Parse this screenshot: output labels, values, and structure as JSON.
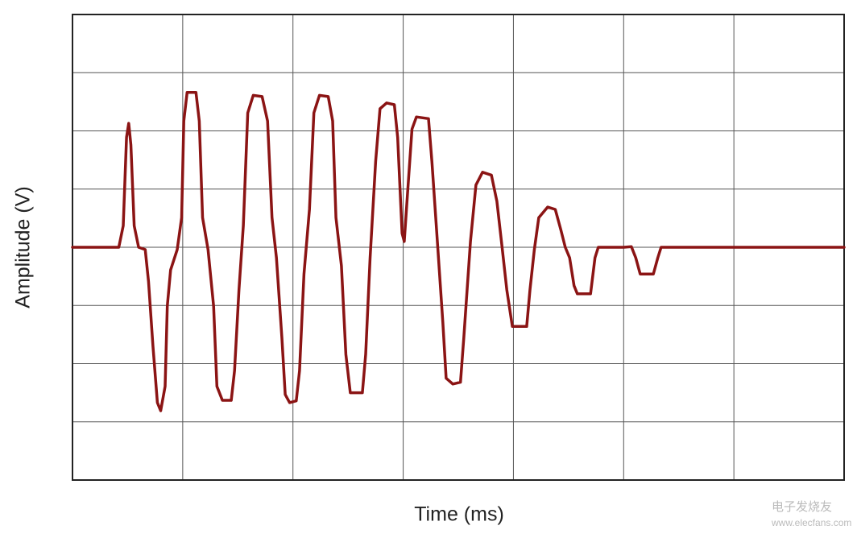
{
  "chart_data": {
    "type": "line",
    "x_label": "Time (ms)",
    "y_label": "Amplitude (V)",
    "annotations": [
      "电子发烧友",
      "www.elecfans.com"
    ],
    "color": "#8b1414",
    "grid": true,
    "xlim": [
      0,
      7
    ],
    "ylim": [
      -4,
      4
    ],
    "x": [
      0,
      0.42,
      0.46,
      0.49,
      0.51,
      0.53,
      0.56,
      0.6,
      0.66,
      0.69,
      0.73,
      0.77,
      0.8,
      0.84,
      0.86,
      0.89,
      0.95,
      0.99,
      1.01,
      1.04,
      1.12,
      1.15,
      1.18,
      1.23,
      1.28,
      1.31,
      1.36,
      1.44,
      1.47,
      1.51,
      1.55,
      1.59,
      1.64,
      1.72,
      1.77,
      1.81,
      1.85,
      1.9,
      1.93,
      1.97,
      2.03,
      2.06,
      2.1,
      2.15,
      2.19,
      2.24,
      2.32,
      2.36,
      2.39,
      2.44,
      2.48,
      2.52,
      2.63,
      2.66,
      2.7,
      2.75,
      2.79,
      2.85,
      2.92,
      2.95,
      2.99,
      3.01,
      3.04,
      3.08,
      3.12,
      3.23,
      3.26,
      3.31,
      3.36,
      3.39,
      3.45,
      3.52,
      3.55,
      3.61,
      3.66,
      3.72,
      3.8,
      3.85,
      3.9,
      3.94,
      3.99,
      4.12,
      4.15,
      4.19,
      4.23,
      4.31,
      4.38,
      4.43,
      4.47,
      4.51,
      4.55,
      4.58,
      4.7,
      4.74,
      4.77,
      5.0,
      5.07,
      5.11,
      5.15,
      5.27,
      5.31,
      5.34,
      5.91,
      7
    ],
    "values": [
      0,
      0,
      0.37,
      1.89,
      2.13,
      1.76,
      0.37,
      0,
      -0.04,
      -0.59,
      -1.7,
      -2.67,
      -2.81,
      -2.39,
      -1.01,
      -0.39,
      -0.04,
      0.51,
      2.17,
      2.66,
      2.66,
      2.17,
      0.51,
      -0.04,
      -1.01,
      -2.39,
      -2.63,
      -2.63,
      -2.12,
      -0.73,
      0.37,
      2.31,
      2.61,
      2.59,
      2.17,
      0.51,
      -0.18,
      -1.56,
      -2.53,
      -2.67,
      -2.64,
      -2.12,
      -0.46,
      0.65,
      2.31,
      2.61,
      2.59,
      2.17,
      0.51,
      -0.32,
      -1.84,
      -2.5,
      -2.5,
      -1.84,
      -0.18,
      1.48,
      2.38,
      2.48,
      2.45,
      1.89,
      0.24,
      0.1,
      0.93,
      2.03,
      2.24,
      2.21,
      1.48,
      0.1,
      -1.29,
      -2.25,
      -2.35,
      -2.32,
      -1.56,
      0.1,
      1.07,
      1.29,
      1.24,
      0.79,
      -0.04,
      -0.73,
      -1.36,
      -1.36,
      -0.73,
      -0.04,
      0.51,
      0.69,
      0.65,
      0.3,
      0,
      -0.18,
      -0.66,
      -0.8,
      -0.8,
      -0.18,
      0,
      0,
      0.01,
      -0.18,
      -0.46,
      -0.46,
      -0.18,
      0,
      0,
      0
    ]
  }
}
